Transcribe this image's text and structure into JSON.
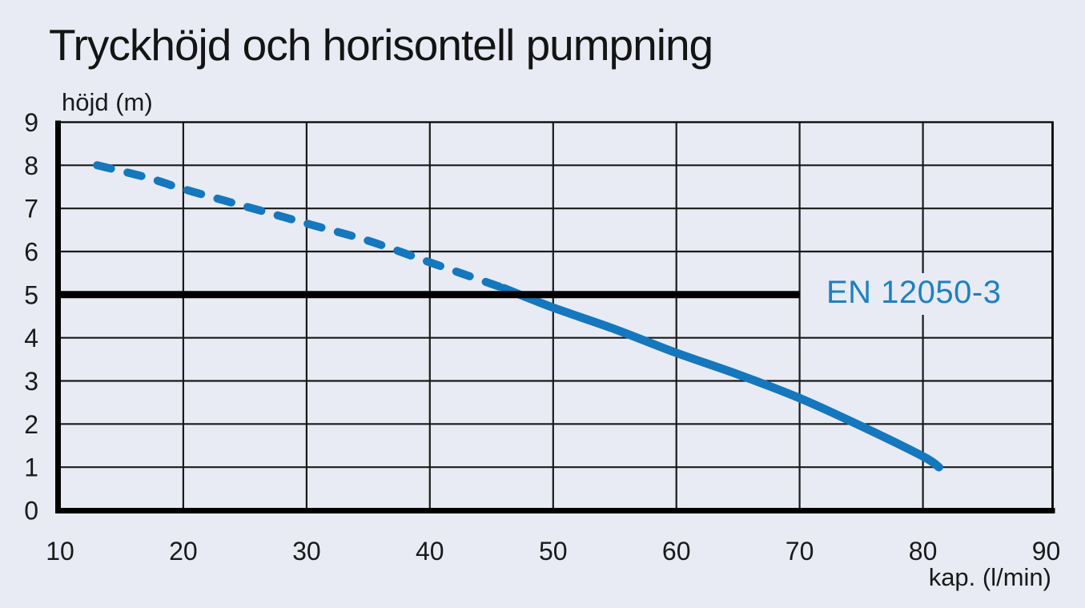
{
  "title": "Tryckhöjd och horisontell pumpning",
  "colors": {
    "background": "#e8ebf3",
    "curve_blue": "#1577bd",
    "en_label_blue": "#1e80c4",
    "grid": "#1a1a1a",
    "axis": "#000000",
    "text": "#1a1a1a"
  },
  "chart_data": {
    "type": "line",
    "title": "Tryckhöjd och horisontell pumpning",
    "xlabel": "kap. (l/min)",
    "ylabel": "höjd (m)",
    "xlim": [
      10,
      90
    ],
    "ylim": [
      0,
      9
    ],
    "x_ticks": [
      10,
      20,
      30,
      40,
      50,
      60,
      70,
      80,
      90
    ],
    "y_ticks": [
      0,
      1,
      2,
      3,
      4,
      5,
      6,
      7,
      8,
      9
    ],
    "grid": true,
    "legend_position": "none",
    "series": [
      {
        "name": "pump-curve-above-limit",
        "style": "dashed",
        "color": "#1577bd",
        "points": [
          [
            13,
            8.0
          ],
          [
            17,
            7.72
          ],
          [
            20,
            7.45
          ],
          [
            25,
            7.05
          ],
          [
            30,
            6.65
          ],
          [
            35,
            6.25
          ],
          [
            40,
            5.75
          ],
          [
            43,
            5.45
          ],
          [
            46,
            5.15
          ]
        ]
      },
      {
        "name": "pump-curve-below-limit",
        "style": "solid",
        "color": "#1577bd",
        "points": [
          [
            46,
            5.15
          ],
          [
            50,
            4.7
          ],
          [
            55,
            4.2
          ],
          [
            60,
            3.65
          ],
          [
            65,
            3.15
          ],
          [
            70,
            2.6
          ],
          [
            75,
            1.95
          ],
          [
            80,
            1.25
          ],
          [
            81.3,
            1.0
          ]
        ]
      },
      {
        "name": "en-12050-3-limit-line",
        "style": "limit",
        "color": "#000000",
        "points": [
          [
            10,
            5
          ],
          [
            70,
            5
          ]
        ]
      }
    ],
    "annotations": [
      {
        "text": "EN 12050-3",
        "x": 72,
        "y": 5,
        "color": "#1e80c4"
      }
    ]
  }
}
